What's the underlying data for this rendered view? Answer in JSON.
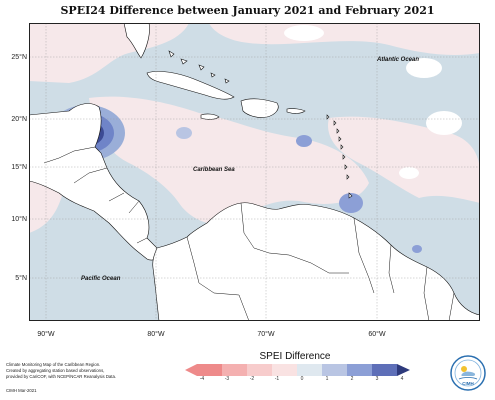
{
  "title": "SPEI24 Difference between January 2021 and February 2021",
  "map": {
    "lat_labels": [
      "25°N",
      "20°N",
      "15°N",
      "10°N",
      "5°N"
    ],
    "lon_labels": [
      "90°W",
      "80°W",
      "70°W",
      "60°W"
    ],
    "place_labels": {
      "atlantic": "Atlantic Ocean",
      "caribbean": "Caribbean Sea",
      "pacific": "Pacific Ocean"
    },
    "colors": {
      "land_background": "#ffffff",
      "ocean_neutral_positive": "#cfdde6",
      "slightly_negative": "#f6e8ea",
      "level_1": "#9aaed8",
      "level_2": "#6f84c8",
      "level_3": "#3c4a94"
    }
  },
  "legend": {
    "title": "SPEI Difference",
    "ticks": [
      "-4",
      "-3",
      "-2",
      "-1",
      "0",
      "1",
      "2",
      "3",
      "4"
    ],
    "colors": [
      "#ee8a8a",
      "#f4b0b0",
      "#f7cccc",
      "#f9e2e2",
      "#dfe8ef",
      "#b9c5e3",
      "#8c9fd6",
      "#5e6fb8",
      "#2e3a7c"
    ]
  },
  "footnote": {
    "lines": [
      "Climate Monitoring Map of the Caribbean Region.",
      "Created by aggregating station based observations,",
      "provided by CariCOF, with NCEP/NCAR Reanalysis Data."
    ],
    "credit": "CIMH  Mar-2021"
  },
  "logo": {
    "text": "CIMH",
    "icon": "cimh-logo-icon"
  }
}
